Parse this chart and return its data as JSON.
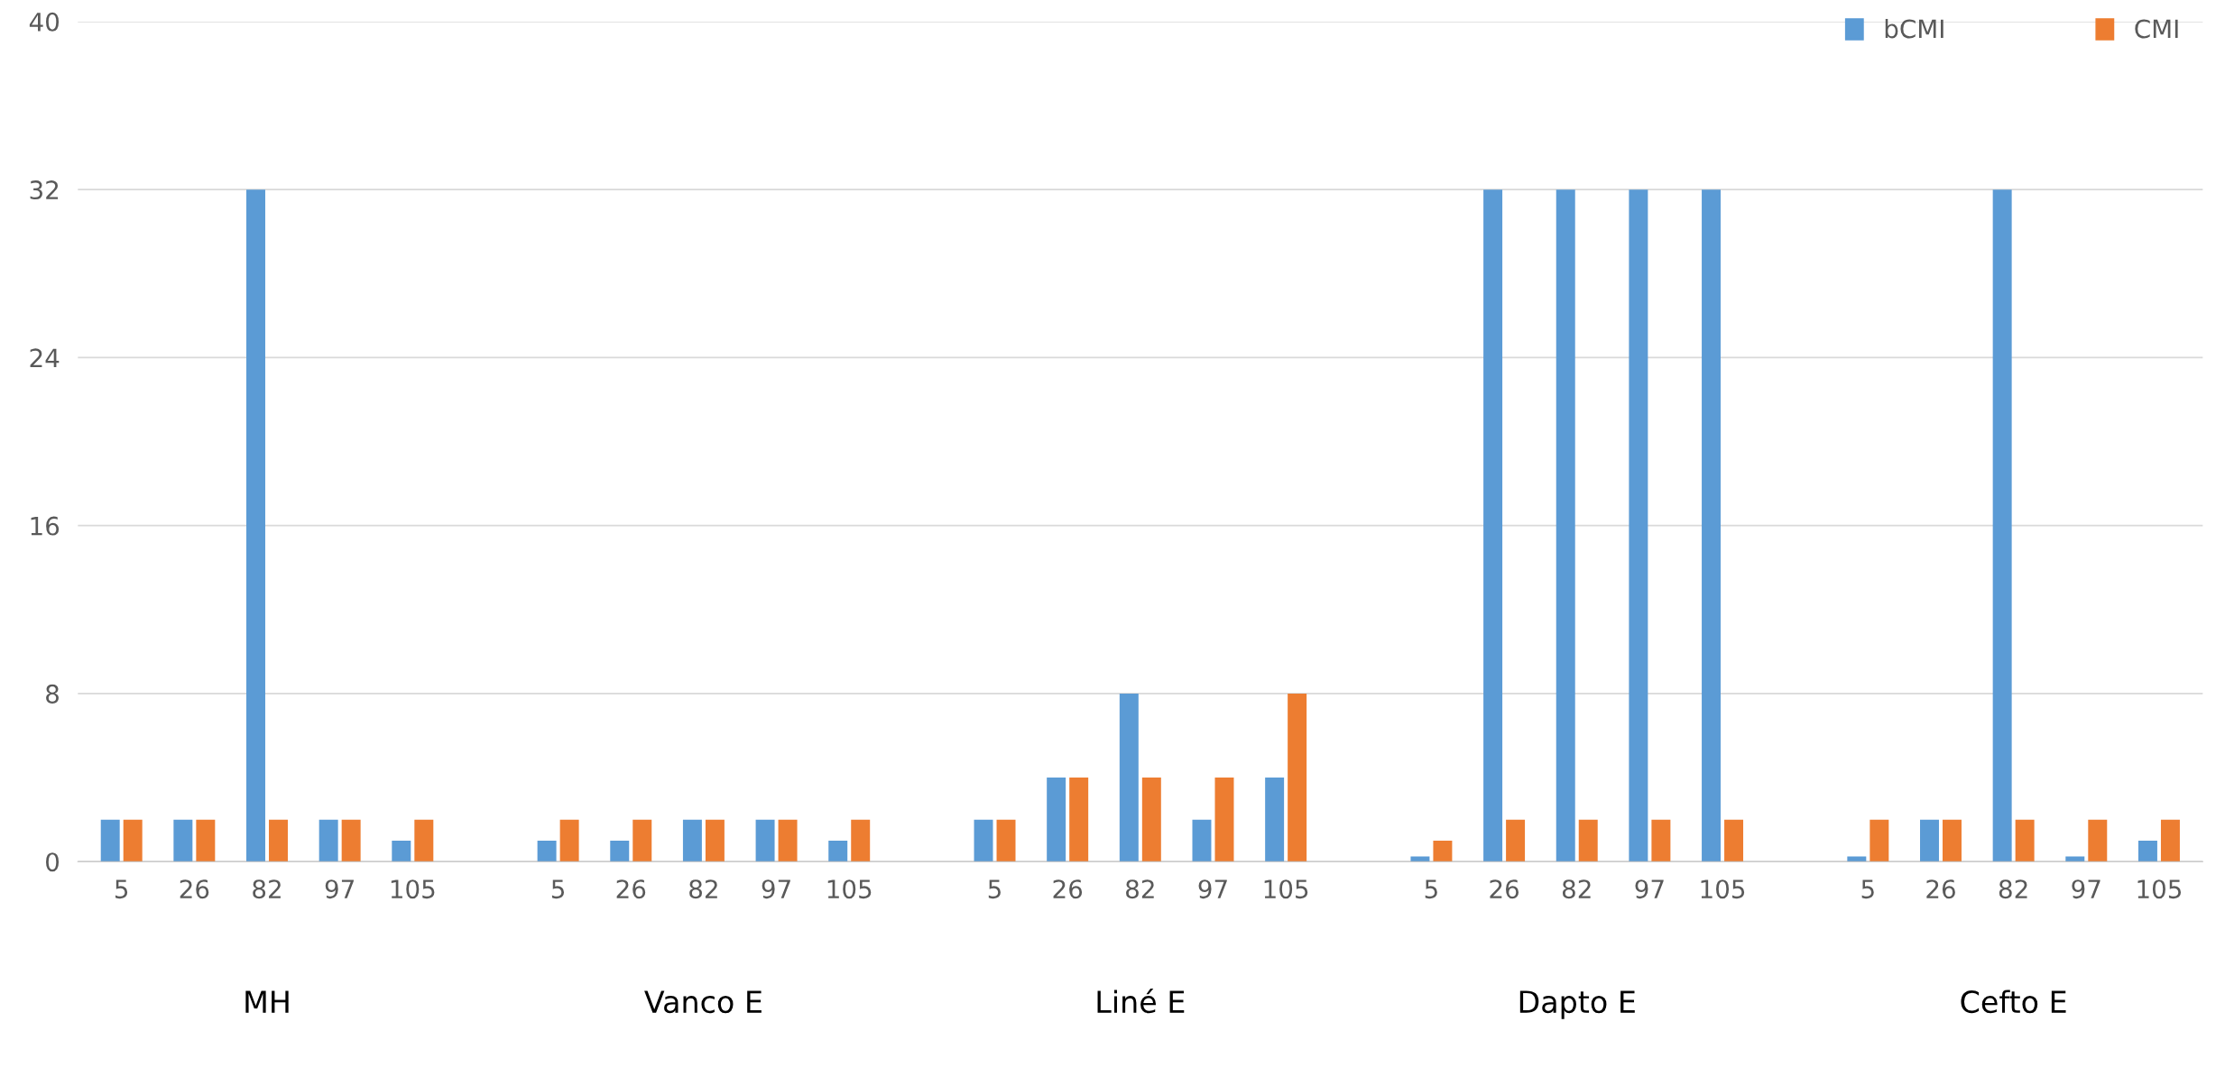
{
  "chart_data": {
    "type": "bar",
    "categories": [
      "5",
      "26",
      "82",
      "97",
      "105",
      null,
      "5",
      "26",
      "82",
      "97",
      "105",
      null,
      "5",
      "26",
      "82",
      "97",
      "105",
      null,
      "5",
      "26",
      "82",
      "97",
      "105",
      null,
      "5",
      "26",
      "82",
      "97",
      "105"
    ],
    "series": [
      {
        "name": "bCMI",
        "color": "#5b9bd5",
        "values": [
          2,
          2,
          32,
          2,
          1,
          null,
          1,
          1,
          2,
          2,
          1,
          null,
          2,
          4,
          8,
          2,
          4,
          null,
          0.25,
          32,
          32,
          32,
          32,
          null,
          0.25,
          2,
          32,
          0.25,
          1
        ]
      },
      {
        "name": "CMI",
        "color": "#ed7d31",
        "values": [
          2,
          2,
          2,
          2,
          2,
          null,
          2,
          2,
          2,
          2,
          2,
          null,
          2,
          4,
          4,
          4,
          8,
          null,
          1,
          2,
          2,
          2,
          2,
          null,
          2,
          2,
          2,
          2,
          2
        ]
      }
    ],
    "annotations": [
      "MH",
      "Vanco E",
      "Liné E",
      "Dapto E",
      "Cefto E"
    ],
    "ylim": [
      0,
      40
    ],
    "yticks": [
      0,
      8,
      16,
      24,
      32,
      40
    ],
    "grid": "y",
    "legend": "top right"
  }
}
